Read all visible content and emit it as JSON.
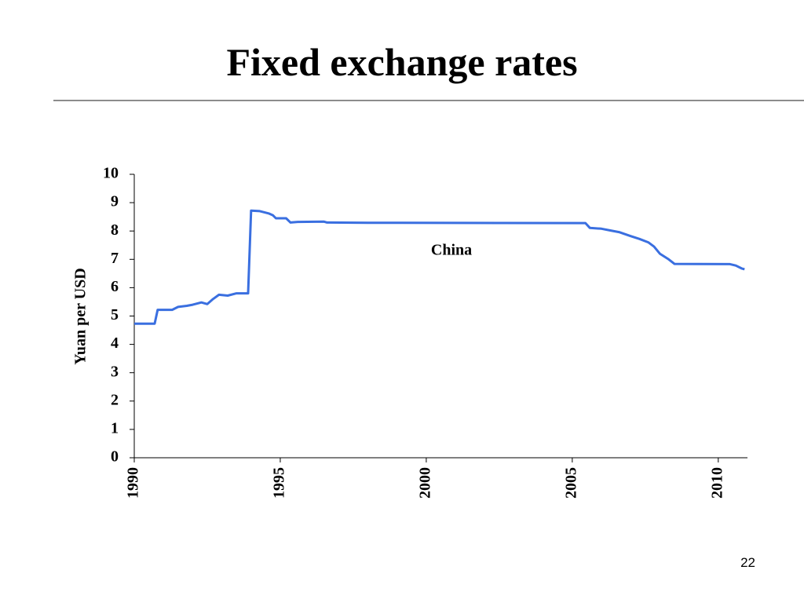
{
  "title": "Fixed exchange rates",
  "page_number": "22",
  "chart_data": {
    "type": "line",
    "ylabel": "Yuan per USD",
    "x": [
      1990.0,
      1990.7,
      1990.8,
      1991.1,
      1991.3,
      1991.5,
      1991.8,
      1992.0,
      1992.3,
      1992.5,
      1992.7,
      1992.9,
      1993.2,
      1993.5,
      1993.9,
      1994.0,
      1994.3,
      1994.6,
      1994.75,
      1994.85,
      1995.2,
      1995.35,
      1995.6,
      1996.5,
      1996.6,
      1998.0,
      2005.45,
      2005.6,
      2006.0,
      2006.3,
      2006.6,
      2007.0,
      2007.3,
      2007.6,
      2007.8,
      2008.0,
      2008.3,
      2008.5,
      2010.4,
      2010.6,
      2010.8,
      2010.9
    ],
    "series": [
      {
        "name": "China",
        "color": "#3a6fe0",
        "values": [
          4.73,
          4.73,
          5.22,
          5.22,
          5.22,
          5.32,
          5.36,
          5.4,
          5.48,
          5.42,
          5.6,
          5.75,
          5.72,
          5.8,
          5.8,
          8.72,
          8.7,
          8.62,
          8.55,
          8.45,
          8.45,
          8.3,
          8.32,
          8.33,
          8.3,
          8.29,
          8.28,
          8.11,
          8.08,
          8.02,
          7.96,
          7.82,
          7.72,
          7.6,
          7.45,
          7.2,
          7.0,
          6.84,
          6.83,
          6.78,
          6.68,
          6.65
        ]
      }
    ],
    "xlim": [
      1990,
      2011
    ],
    "xticks": [
      1990,
      1995,
      2000,
      2005,
      2010
    ],
    "ylim": [
      0,
      10
    ],
    "yticks": [
      0,
      1,
      2,
      3,
      4,
      5,
      6,
      7,
      8,
      9,
      10
    ]
  }
}
